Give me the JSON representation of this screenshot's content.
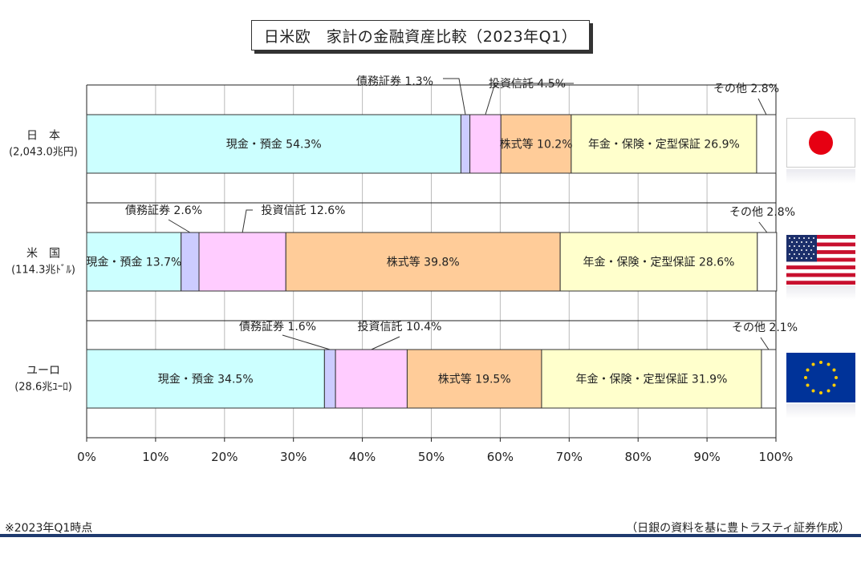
{
  "title": "日米欧　家計の金融資産比較（2023年Q1）",
  "footnote": "※2023年Q1時点",
  "source": "（日銀の資料を基に豊トラスティ証券作成）",
  "chart_data": {
    "type": "bar",
    "orientation": "horizontal",
    "stacked": true,
    "grid": true,
    "xlim": [
      0,
      100
    ],
    "x_ticks": [
      "0%",
      "10%",
      "20%",
      "30%",
      "40%",
      "50%",
      "60%",
      "70%",
      "80%",
      "90%",
      "100%"
    ],
    "categories": [
      {
        "name": "日　本",
        "sub": "(2,043.0兆円)"
      },
      {
        "name": "米　国",
        "sub": "(114.3兆ﾄﾞﾙ)"
      },
      {
        "name": "ユーロ",
        "sub": "(28.6兆ﾕｰﾛ)"
      }
    ],
    "series": [
      {
        "name": "現金・預金",
        "color": "#ccffff",
        "values": [
          54.3,
          13.7,
          34.5
        ]
      },
      {
        "name": "債務証券",
        "color": "#ccccff",
        "values": [
          1.3,
          2.6,
          1.6
        ]
      },
      {
        "name": "投資信託",
        "color": "#ffccff",
        "values": [
          4.5,
          12.6,
          10.4
        ]
      },
      {
        "name": "株式等",
        "color": "#ffcc99",
        "values": [
          10.2,
          39.8,
          19.5
        ]
      },
      {
        "name": "年金・保険・定型保証",
        "color": "#ffffcc",
        "values": [
          26.9,
          28.6,
          31.9
        ]
      },
      {
        "name": "その他",
        "color": "#ffffff",
        "values": [
          2.8,
          2.8,
          2.1
        ]
      }
    ],
    "labels": [
      [
        "現金・預金 54.3%",
        "債務証券 1.3%",
        "投資信託 4.5%",
        "株式等 10.2%",
        "年金・保険・定型保証 26.9%",
        "その他 2.8%"
      ],
      [
        "現金・預金 13.7%",
        "債務証券 2.6%",
        "投資信託 12.6%",
        "株式等 39.8%",
        "年金・保険・定型保証 28.6%",
        "その他 2.8%"
      ],
      [
        "現金・預金 34.5%",
        "債務証券 1.6%",
        "投資信託 10.4%",
        "株式等 19.5%",
        "年金・保険・定型保証 31.9%",
        "その他 2.1%"
      ]
    ],
    "flags": [
      "japan-flag",
      "usa-flag",
      "eu-flag"
    ]
  }
}
